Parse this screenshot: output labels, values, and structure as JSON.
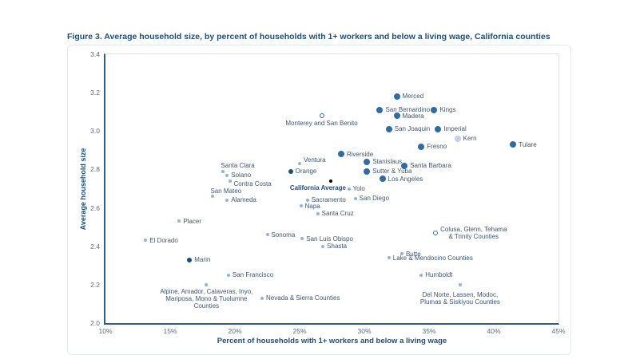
{
  "title": "Figure 3. Average household size, by percent of households with 1+ workers and below a living wage, California counties",
  "chart_data": {
    "type": "scatter",
    "title": "Figure 3. Average household size, by percent of households with 1+ workers and below a living wage, California counties",
    "xlabel": "Percent of households with 1+ workers and below a living wage",
    "ylabel": "Average household size",
    "xlim": [
      10,
      45
    ],
    "ylim": [
      2.0,
      3.4
    ],
    "x_ticks": [
      {
        "value": 10,
        "label": "10%"
      },
      {
        "value": 15,
        "label": "15%"
      },
      {
        "value": 20,
        "label": "20%"
      },
      {
        "value": 25,
        "label": "25%"
      },
      {
        "value": 30,
        "label": "30%"
      },
      {
        "value": 35,
        "label": "35%"
      },
      {
        "value": 40,
        "label": "40%"
      },
      {
        "value": 45,
        "label": "45%"
      }
    ],
    "y_ticks": [
      {
        "value": 3.4,
        "label": "3.4"
      },
      {
        "value": 3.2,
        "label": "3.2"
      },
      {
        "value": 3.0,
        "label": "3.0"
      },
      {
        "value": 2.8,
        "label": "2.8"
      },
      {
        "value": 2.6,
        "label": "2.6"
      },
      {
        "value": 2.4,
        "label": "2.4"
      },
      {
        "value": 2.2,
        "label": "2.2"
      },
      {
        "value": 2.0,
        "label": "2.0"
      }
    ],
    "grid": false,
    "legend": false,
    "styles": {
      "large-dark": {
        "size": 8,
        "fill": "#2e6ca6"
      },
      "medium-dark": {
        "size": 6,
        "fill": "#1f4e79"
      },
      "small-light": {
        "size": 4,
        "fill": "#8fb5d9"
      },
      "large-pale": {
        "size": 8,
        "fill": "#bdd3ea"
      },
      "open": {
        "size": 6,
        "fill": "#ffffff",
        "stroke": "#2e6ca6"
      },
      "average": {
        "size": 4.5,
        "fill": "#000000"
      }
    },
    "points": [
      {
        "name": "Merced",
        "x": 32.5,
        "y": 3.18,
        "style": "large-dark",
        "label": "Merced",
        "placement": "right"
      },
      {
        "name": "San Bernardino",
        "x": 31.2,
        "y": 3.11,
        "style": "large-dark",
        "label": "San Bernardino",
        "placement": "right"
      },
      {
        "name": "Kings",
        "x": 35.4,
        "y": 3.11,
        "style": "large-dark",
        "label": "Kings",
        "placement": "right"
      },
      {
        "name": "Madera",
        "x": 32.5,
        "y": 3.08,
        "style": "large-dark",
        "label": "Madera",
        "placement": "right"
      },
      {
        "name": "Monterey and San Benito",
        "x": 26.7,
        "y": 3.08,
        "style": "open",
        "label": "Monterey and San Benito",
        "placement": "below"
      },
      {
        "name": "San Joaquin",
        "x": 31.9,
        "y": 3.01,
        "style": "large-dark",
        "label": "San Joaquin",
        "placement": "right"
      },
      {
        "name": "Imperial",
        "x": 35.7,
        "y": 3.01,
        "style": "large-dark",
        "label": "Imperial",
        "placement": "right"
      },
      {
        "name": "Kern",
        "x": 37.2,
        "y": 2.96,
        "style": "large-pale",
        "label": "Kern",
        "placement": "right"
      },
      {
        "name": "Fresno",
        "x": 34.4,
        "y": 2.92,
        "style": "large-dark",
        "label": "Fresno",
        "placement": "right"
      },
      {
        "name": "Tulare",
        "x": 41.5,
        "y": 2.93,
        "style": "large-dark",
        "label": "Tulare",
        "placement": "right"
      },
      {
        "name": "Riverside",
        "x": 28.2,
        "y": 2.88,
        "style": "large-dark",
        "label": "Riverside",
        "placement": "right"
      },
      {
        "name": "Ventura",
        "x": 25.0,
        "y": 2.83,
        "style": "small-light",
        "label": "Ventura",
        "placement": "right",
        "ldy": -5
      },
      {
        "name": "Stanislaus",
        "x": 30.2,
        "y": 2.84,
        "style": "large-dark",
        "label": "Stanislaus",
        "placement": "right"
      },
      {
        "name": "Santa Barbara",
        "x": 33.1,
        "y": 2.82,
        "style": "large-dark",
        "label": "Santa Barbara",
        "placement": "right"
      },
      {
        "name": "Orange",
        "x": 24.3,
        "y": 2.79,
        "style": "medium-dark",
        "label": "Orange",
        "placement": "right"
      },
      {
        "name": "Sutter & Yuba",
        "x": 30.2,
        "y": 2.79,
        "style": "large-dark",
        "label": "Sutter & Yuba",
        "placement": "right"
      },
      {
        "name": "Santa Clara",
        "x": 19.1,
        "y": 2.79,
        "style": "small-light",
        "label": "Santa Clara",
        "placement": "above-right",
        "ldy": 2
      },
      {
        "name": "Solano",
        "x": 19.4,
        "y": 2.77,
        "style": "small-light",
        "label": "Solano",
        "placement": "right"
      },
      {
        "name": "Contra Costa",
        "x": 19.6,
        "y": 2.74,
        "style": "small-light",
        "label": "Contra Costa",
        "placement": "right",
        "ldy": 4
      },
      {
        "name": "Los Angeles",
        "x": 31.4,
        "y": 2.75,
        "style": "large-dark",
        "label": "Los Angeles",
        "placement": "right"
      },
      {
        "name": "California Average",
        "x": 27.4,
        "y": 2.74,
        "style": "average",
        "label": "California Average",
        "placement": "below",
        "ldx": -16,
        "bold": true
      },
      {
        "name": "Yolo",
        "x": 28.8,
        "y": 2.7,
        "style": "small-light",
        "label": "Yolo",
        "placement": "right"
      },
      {
        "name": "San Mateo",
        "x": 18.3,
        "y": 2.66,
        "style": "small-light",
        "label": "San Mateo",
        "placement": "above-right",
        "ldy": 3
      },
      {
        "name": "Alameda",
        "x": 19.4,
        "y": 2.64,
        "style": "small-light",
        "label": "Alameda",
        "placement": "right"
      },
      {
        "name": "Sacramento",
        "x": 25.6,
        "y": 2.64,
        "style": "small-light",
        "label": "Sacramento",
        "placement": "right"
      },
      {
        "name": "San Diego",
        "x": 29.3,
        "y": 2.65,
        "style": "small-light",
        "label": "San Diego",
        "placement": "right"
      },
      {
        "name": "Napa",
        "x": 25.1,
        "y": 2.61,
        "style": "small-light",
        "label": "Napa",
        "placement": "right"
      },
      {
        "name": "Santa Cruz",
        "x": 26.4,
        "y": 2.57,
        "style": "small-light",
        "label": "Santa Cruz",
        "placement": "right"
      },
      {
        "name": "Placer",
        "x": 15.7,
        "y": 2.53,
        "style": "small-light",
        "label": "Placer",
        "placement": "right"
      },
      {
        "name": "El Dorado",
        "x": 13.1,
        "y": 2.43,
        "style": "small-light",
        "label": "El Dorado",
        "placement": "right"
      },
      {
        "name": "Sonoma",
        "x": 22.5,
        "y": 2.46,
        "style": "small-light",
        "label": "Sonoma",
        "placement": "right"
      },
      {
        "name": "San Luis Obispo",
        "x": 25.2,
        "y": 2.44,
        "style": "small-light",
        "label": "San Luis Obispo",
        "placement": "right"
      },
      {
        "name": "Shasta",
        "x": 26.8,
        "y": 2.4,
        "style": "small-light",
        "label": "Shasta",
        "placement": "right"
      },
      {
        "name": "Colusa, Glenn, Tehama & Trinity Counties",
        "x": 35.5,
        "y": 2.47,
        "style": "open",
        "label": "Colusa, Glenn, Tehama\n& Trinity Counties",
        "placement": "right"
      },
      {
        "name": "Butte",
        "x": 32.9,
        "y": 2.36,
        "style": "small-light",
        "label": "Butte",
        "placement": "right"
      },
      {
        "name": "Lake & Mendocino Counties",
        "x": 31.9,
        "y": 2.34,
        "style": "small-light",
        "label": "Lake & Mendocino Counties",
        "placement": "right"
      },
      {
        "name": "Marin",
        "x": 16.5,
        "y": 2.33,
        "style": "medium-dark",
        "label": "Marin",
        "placement": "right"
      },
      {
        "name": "Humboldt",
        "x": 34.4,
        "y": 2.25,
        "style": "small-light",
        "label": "Humboldt",
        "placement": "right"
      },
      {
        "name": "San Francisco",
        "x": 19.5,
        "y": 2.25,
        "style": "small-light",
        "label": "San Francisco",
        "placement": "right"
      },
      {
        "name": "Alpine, Amador, Calaveras, Inyo, Mariposa, Mono & Tuolumne Counties",
        "x": 17.8,
        "y": 2.2,
        "style": "small-light",
        "label": "Alpine, Amador, Calaveras, Inyo,\nMariposa, Mono & Tuolumne\nCounties",
        "placement": "below"
      },
      {
        "name": "Del Norte, Lassen, Modoc, Plumas & Siskiyou Counties",
        "x": 37.4,
        "y": 2.2,
        "style": "small-light",
        "label": "Del Norte, Lassen, Modoc,\nPlumas & Siskiyou Counties",
        "placement": "below",
        "ldy": 4
      },
      {
        "name": "Nevada & Sierra Counties",
        "x": 22.1,
        "y": 2.13,
        "style": "small-light",
        "label": "Nevada & Sierra Counties",
        "placement": "right"
      }
    ]
  },
  "colors": {
    "title_text": "#1f4e79",
    "axis_line": "#2d5f8f",
    "plot_border_light": "#dbe5f1",
    "tick_text": "#5b6d85",
    "point_label_text": "#3e5771",
    "dot_dark_blue": "#2e6ca6",
    "dot_navy": "#1f4e79",
    "dot_light_blue": "#8fb5d9",
    "dot_pale_blue": "#bdd3ea",
    "dot_black": "#000000"
  }
}
